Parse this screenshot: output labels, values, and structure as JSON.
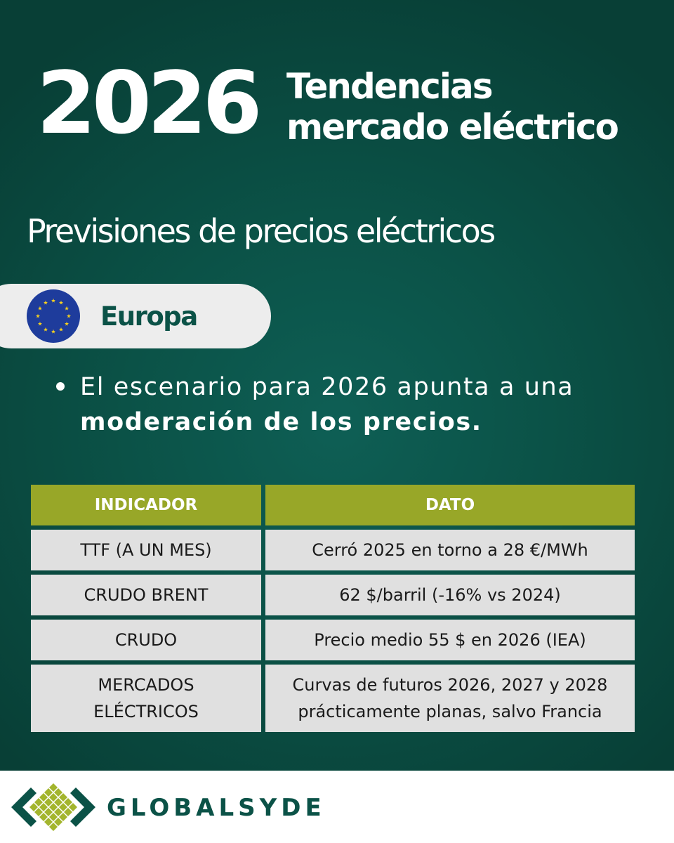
{
  "header": {
    "year": "2026",
    "title_line1": "Tendencias",
    "title_line2": "mercado eléctrico"
  },
  "subtitle": "Previsiones de precios eléctricos",
  "region": {
    "label": "Europa",
    "flag_icon": "eu-flag-icon"
  },
  "bullet": {
    "text_regular": "El escenario para 2026 apunta a una ",
    "text_bold": "moderación de los precios."
  },
  "table": {
    "headers": [
      "INDICADOR",
      "DATO"
    ],
    "rows": [
      {
        "indicator": [
          "TTF (A UN MES)"
        ],
        "value": [
          "Cerró 2025 en torno a 28 €/MWh"
        ]
      },
      {
        "indicator": [
          "CRUDO BRENT"
        ],
        "value": [
          "62 $/barril (-16% vs 2024)"
        ]
      },
      {
        "indicator": [
          "CRUDO"
        ],
        "value": [
          "Precio medio 55 $ en 2026 (IEA)"
        ]
      },
      {
        "indicator": [
          "MERCADOS",
          "ELÉCTRICOS"
        ],
        "value": [
          "Curvas de futuros 2026, 2027 y 2028",
          "prácticamente planas, salvo Francia"
        ]
      }
    ]
  },
  "footer": {
    "brand": "GLOBALSYDE"
  },
  "colors": {
    "background": "#0b5247",
    "accent": "#98a728",
    "cell": "#e0e0e0",
    "pill": "#ededed",
    "eu_blue": "#1e3c9c",
    "eu_star": "#f5d020"
  }
}
